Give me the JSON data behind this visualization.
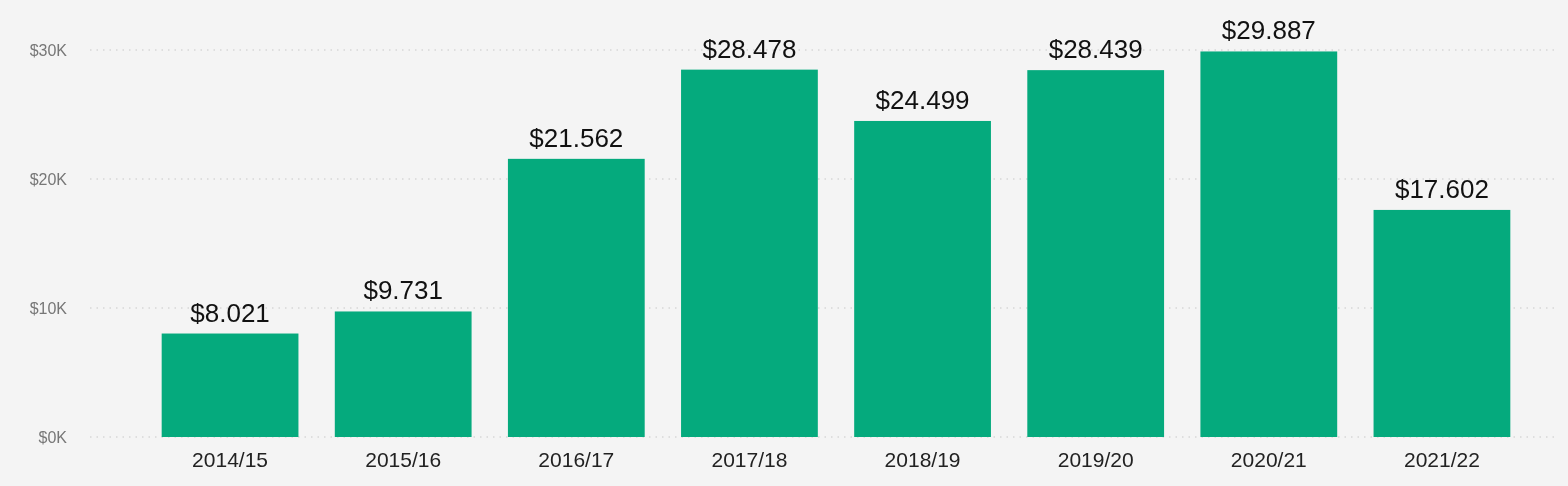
{
  "chart_data": {
    "type": "bar",
    "categories": [
      "2014/15",
      "2015/16",
      "2016/17",
      "2017/18",
      "2018/19",
      "2019/20",
      "2020/21",
      "2021/22"
    ],
    "values": [
      8.021,
      9.731,
      21.562,
      28.478,
      24.499,
      28.439,
      29.887,
      17.602
    ],
    "value_labels": [
      "$8.021",
      "$9.731",
      "$21.562",
      "$28.478",
      "$24.499",
      "$28.439",
      "$29.887",
      "$17.602"
    ],
    "color": "#05aa7d",
    "ylim": [
      0,
      30
    ],
    "yticks": [
      {
        "value": 0,
        "label": "$0K"
      },
      {
        "value": 10,
        "label": "$10K"
      },
      {
        "value": 20,
        "label": "$20K"
      },
      {
        "value": 30,
        "label": "$30K"
      }
    ],
    "grid": "y"
  }
}
